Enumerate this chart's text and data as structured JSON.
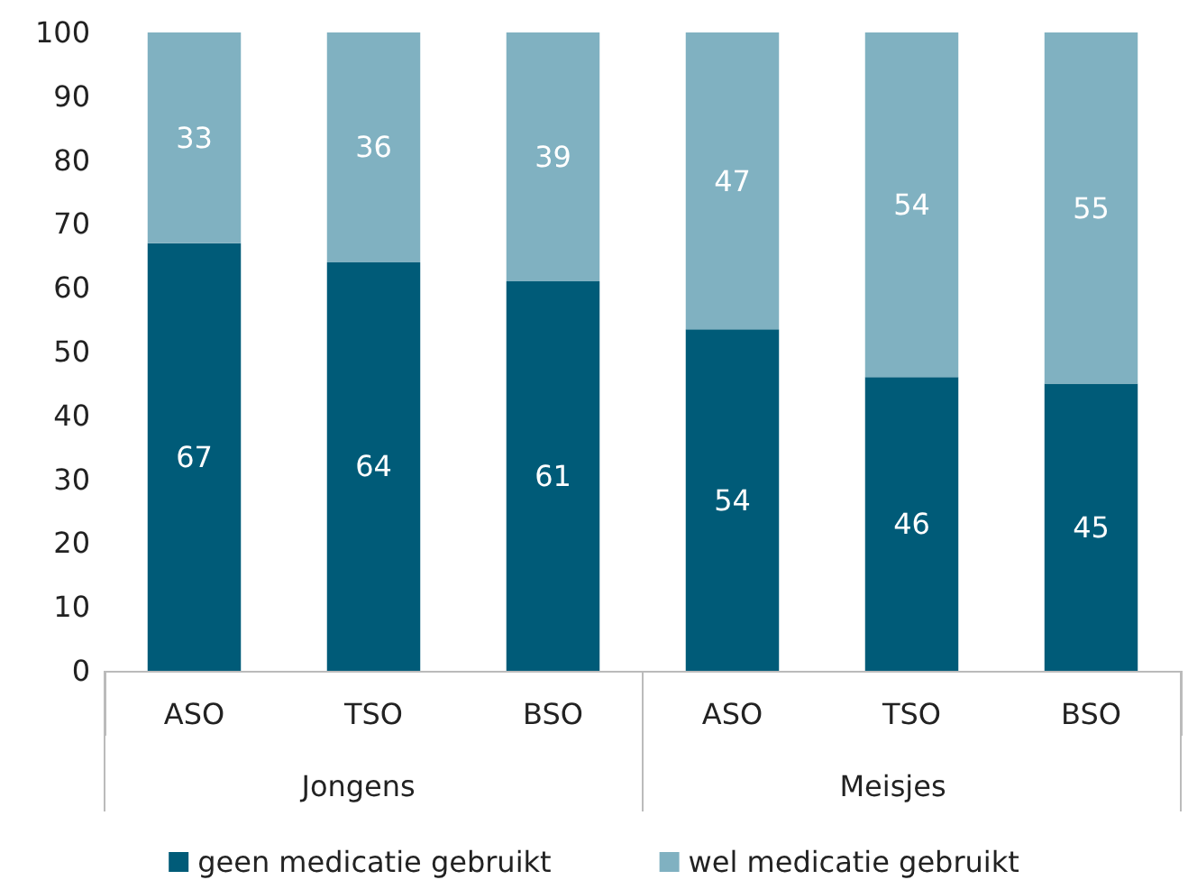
{
  "chart_data": {
    "type": "bar",
    "stacked": true,
    "categories": [
      "ASO",
      "TSO",
      "BSO",
      "ASO",
      "TSO",
      "BSO"
    ],
    "series": [
      {
        "name": "geen medicatie gebruikt",
        "color": "#005b78",
        "values": [
          67,
          64,
          61,
          53.5,
          46,
          45
        ],
        "value_labels": [
          "67",
          "64",
          "61",
          "54",
          "46",
          "45"
        ]
      },
      {
        "name": "wel medicatie gebruikt",
        "color": "#80b1c1",
        "values": [
          33,
          36,
          39,
          46.5,
          54,
          55
        ],
        "value_labels": [
          "33",
          "36",
          "39",
          "47",
          "54",
          "55"
        ]
      }
    ],
    "annotations": [
      "Jongens",
      "Meisjes"
    ],
    "ylim": [
      0,
      100
    ],
    "yticks": [
      0,
      10,
      20,
      30,
      40,
      50,
      60,
      70,
      80,
      90,
      100
    ],
    "grid": false,
    "legend": "bottom"
  }
}
